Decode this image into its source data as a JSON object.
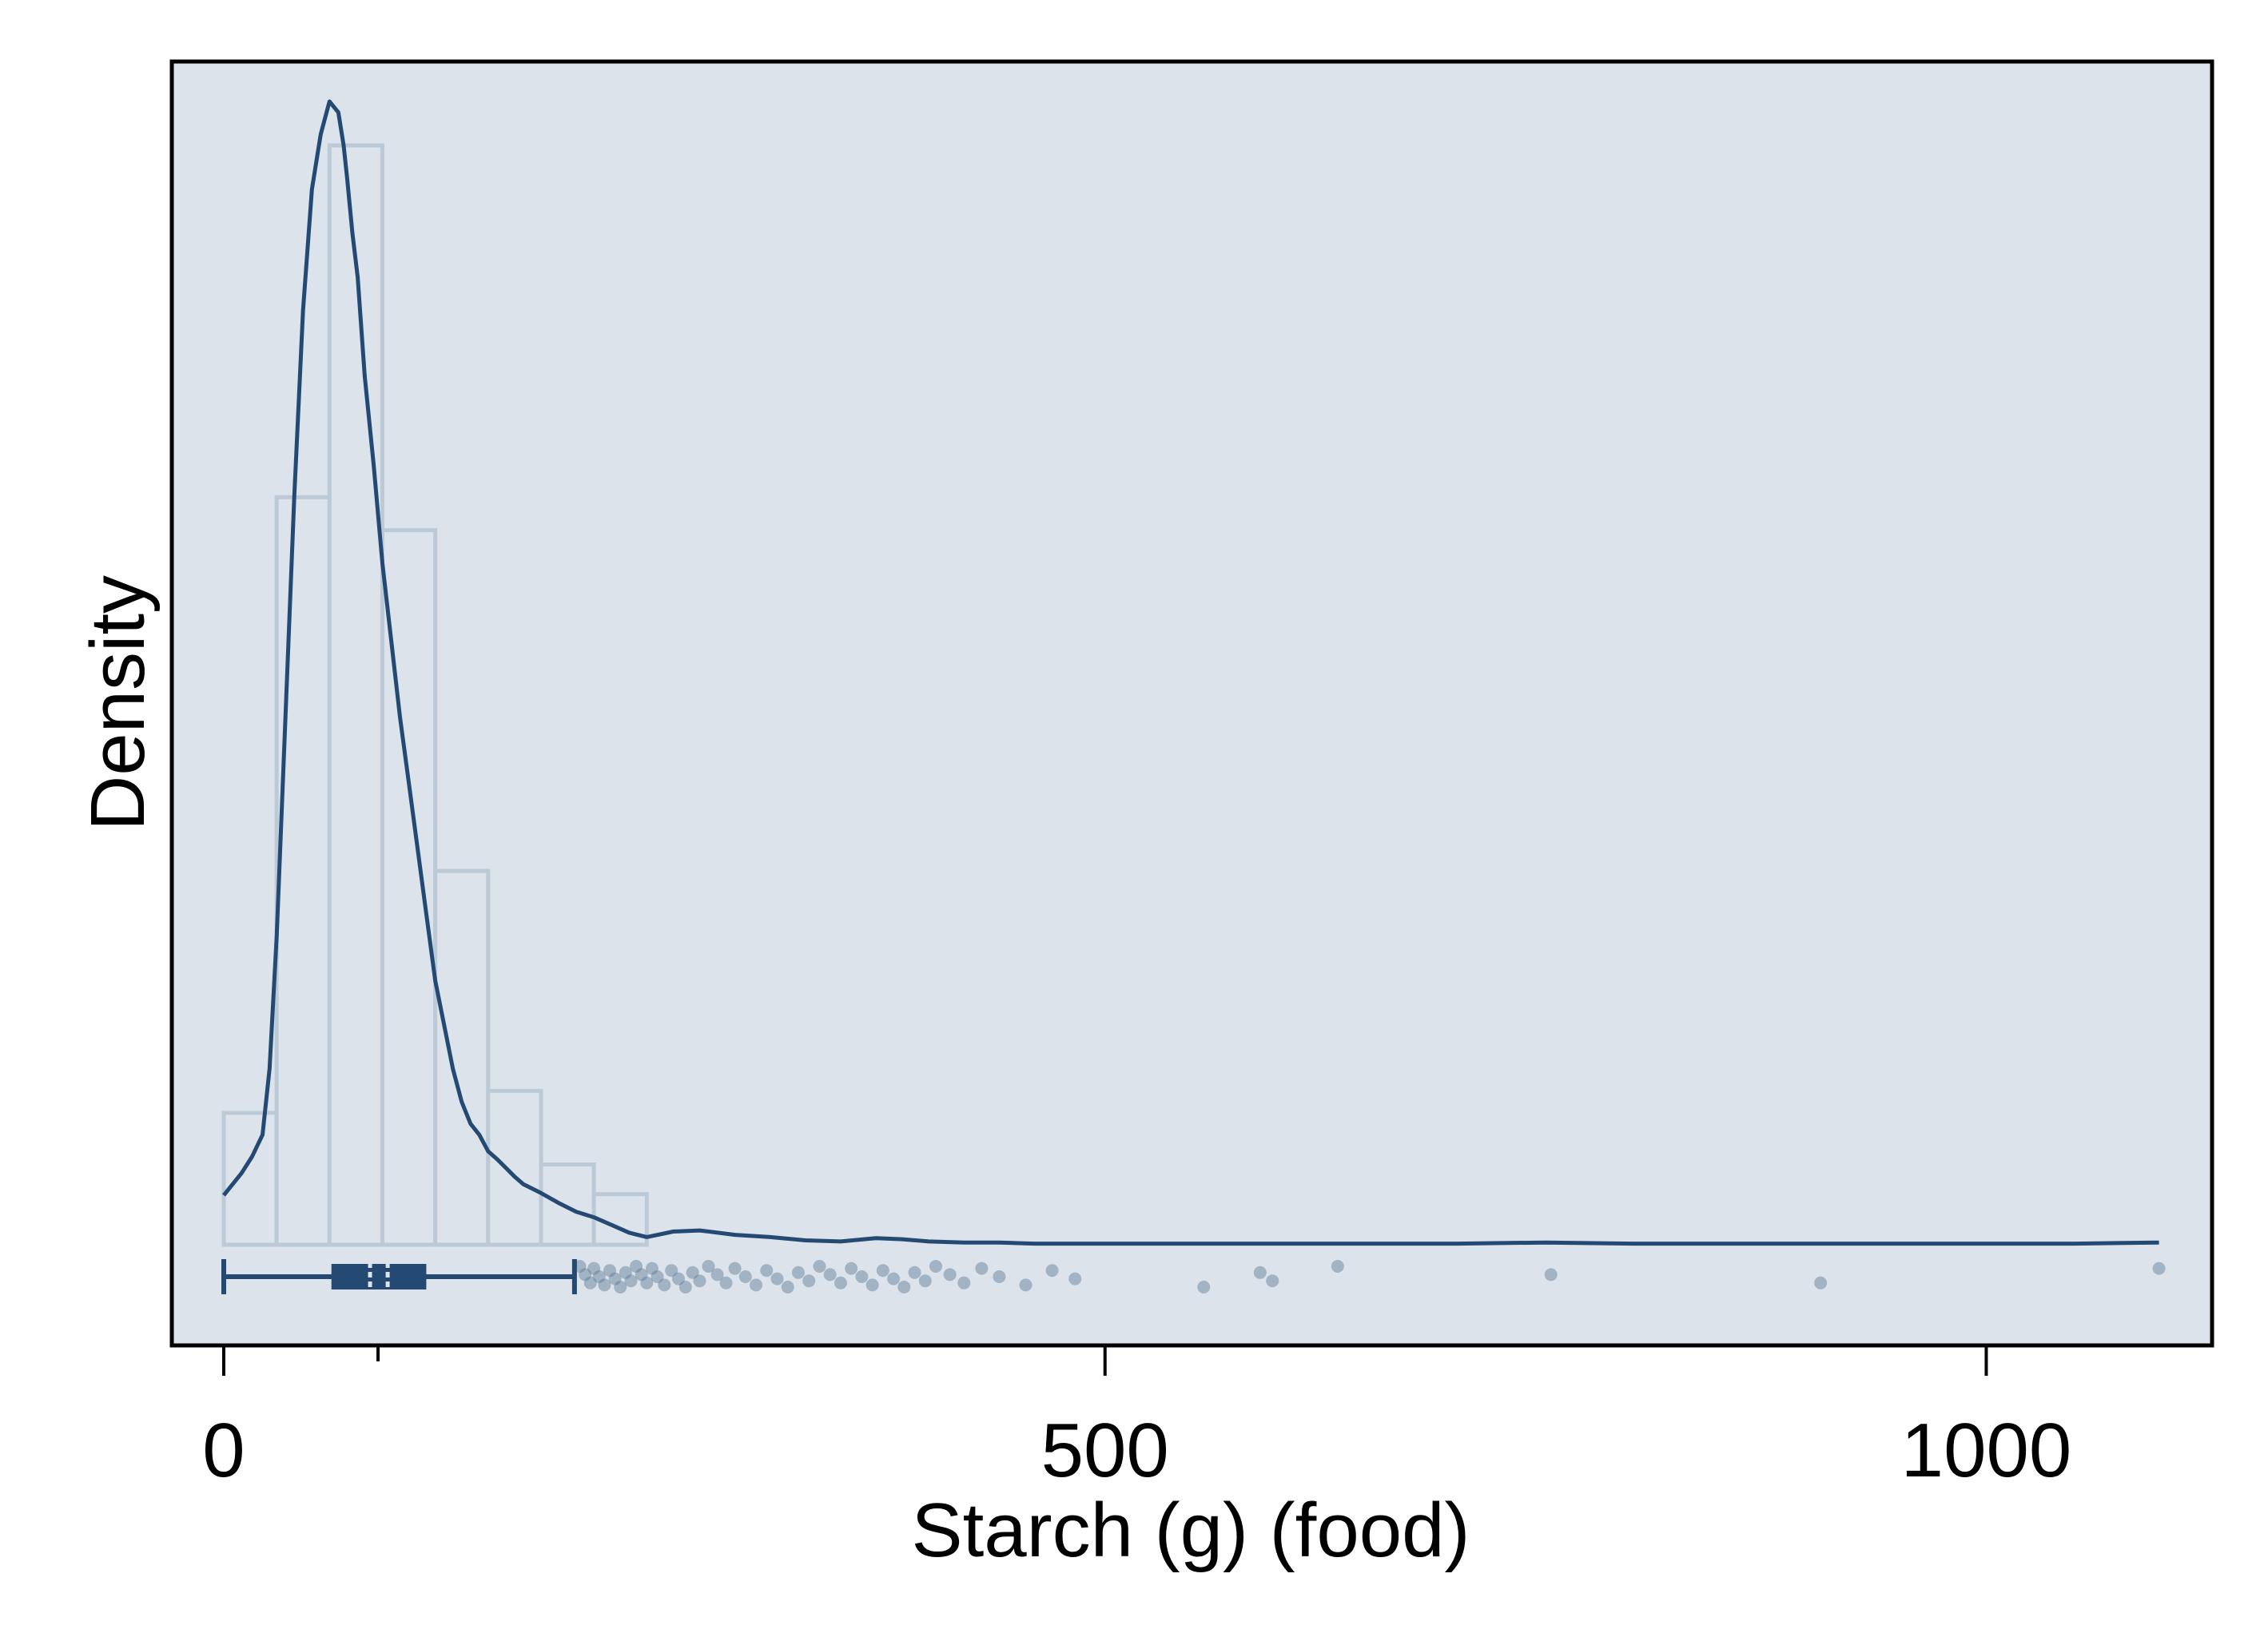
{
  "chart_data": {
    "type": "histogram",
    "title": "",
    "xlabel": "Starch (g) (food)",
    "ylabel": "Density",
    "xlim": [
      -30,
      1130
    ],
    "ylim": [
      0,
      1.0
    ],
    "x_ticks": [
      0,
      500,
      1000
    ],
    "y_ticks_labeled": false,
    "grid": false,
    "colors": {
      "background": "#dce3ea",
      "bar_fill": "#dce3ea",
      "bar_edge": "#bccad7",
      "line": "#244a73",
      "box": "#244a73",
      "points": "#5c7896",
      "frame": "#000000"
    },
    "histogram": {
      "bin_width": 30,
      "bins": [
        {
          "x0": 0,
          "x1": 30,
          "density": 0.12
        },
        {
          "x0": 30,
          "x1": 60,
          "density": 0.68
        },
        {
          "x0": 60,
          "x1": 90,
          "density": 1.0
        },
        {
          "x0": 90,
          "x1": 120,
          "density": 0.65
        },
        {
          "x0": 120,
          "x1": 150,
          "density": 0.34
        },
        {
          "x0": 150,
          "x1": 180,
          "density": 0.14
        },
        {
          "x0": 180,
          "x1": 210,
          "density": 0.073
        },
        {
          "x0": 210,
          "x1": 240,
          "density": 0.046
        }
      ]
    },
    "density_curve": {
      "x": [
        0,
        10,
        16,
        22,
        26,
        30,
        35,
        40,
        45,
        50,
        55,
        60,
        65,
        68,
        70,
        73,
        76,
        80,
        85,
        90,
        95,
        100,
        105,
        110,
        115,
        120,
        125,
        130,
        135,
        140,
        145,
        150,
        155,
        160,
        165,
        170,
        180,
        190,
        200,
        210,
        220,
        230,
        240,
        255,
        270,
        290,
        310,
        330,
        350,
        370,
        385,
        400,
        420,
        440,
        460,
        480,
        500,
        550,
        600,
        650,
        700,
        750,
        800,
        850,
        900,
        950,
        1000,
        1050,
        1098
      ],
      "y": [
        0.045,
        0.065,
        0.08,
        0.1,
        0.16,
        0.28,
        0.48,
        0.68,
        0.85,
        0.96,
        1.01,
        1.04,
        1.03,
        1.0,
        0.97,
        0.92,
        0.88,
        0.79,
        0.71,
        0.62,
        0.55,
        0.48,
        0.42,
        0.36,
        0.3,
        0.24,
        0.2,
        0.16,
        0.13,
        0.11,
        0.1,
        0.085,
        0.078,
        0.07,
        0.062,
        0.055,
        0.047,
        0.038,
        0.03,
        0.025,
        0.018,
        0.011,
        0.007,
        0.012,
        0.013,
        0.009,
        0.007,
        0.004,
        0.003,
        0.006,
        0.005,
        0.003,
        0.002,
        0.002,
        0.001,
        0.001,
        0.001,
        0.001,
        0.001,
        0.001,
        0.001,
        0.002,
        0.001,
        0.001,
        0.001,
        0.001,
        0.001,
        0.001,
        0.002
      ]
    },
    "boxplot": {
      "whisker_low": 0,
      "q1": 62,
      "median": 93,
      "mean": 83,
      "q3": 114,
      "whisker_high": 199
    },
    "outliers": [
      202,
      205,
      208,
      210,
      213,
      216,
      219,
      222,
      225,
      228,
      231,
      234,
      237,
      240,
      243,
      246,
      250,
      254,
      258,
      262,
      266,
      270,
      275,
      280,
      285,
      290,
      296,
      302,
      308,
      314,
      320,
      326,
      332,
      338,
      344,
      350,
      356,
      362,
      368,
      374,
      380,
      386,
      392,
      398,
      404,
      412,
      420,
      430,
      440,
      455,
      470,
      483,
      556,
      588,
      595,
      632,
      753,
      906,
      1098
    ]
  }
}
